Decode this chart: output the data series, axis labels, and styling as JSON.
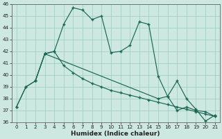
{
  "line1_x": [
    0,
    1,
    2,
    3,
    4,
    5,
    6,
    7,
    8,
    9,
    10,
    11,
    12,
    13,
    14,
    15,
    16,
    17,
    18,
    19,
    20,
    21
  ],
  "line1_y": [
    37.3,
    39.0,
    39.5,
    41.8,
    42.0,
    44.3,
    45.7,
    45.5,
    44.7,
    45.0,
    41.9,
    42.0,
    42.5,
    44.5,
    44.3,
    39.9,
    38.2,
    39.5,
    38.0,
    37.1,
    36.1,
    36.6
  ],
  "line2_x": [
    2,
    3,
    4,
    5,
    6,
    7,
    8,
    9,
    10,
    11,
    12,
    13,
    14,
    15,
    16,
    17,
    18,
    19,
    20,
    21
  ],
  "line2_y": [
    39.5,
    41.8,
    42.0,
    40.8,
    40.2,
    39.7,
    39.3,
    39.0,
    38.7,
    38.5,
    38.3,
    38.1,
    37.9,
    37.7,
    37.5,
    37.3,
    37.1,
    36.9,
    36.7,
    36.5
  ],
  "line3_x": [
    0,
    1,
    2,
    3,
    15,
    16,
    17,
    18,
    19,
    20,
    21
  ],
  "line3_y": [
    37.3,
    39.0,
    39.5,
    41.8,
    38.0,
    38.2,
    37.0,
    37.3,
    37.0,
    36.9,
    36.5
  ],
  "bg_color": "#cce8e0",
  "grid_color": "#99ccbb",
  "line_color": "#1a6655",
  "xlabel": "Humidex (Indice chaleur)",
  "ylim": [
    36,
    46
  ],
  "xlim": [
    -0.5,
    21.5
  ],
  "yticks": [
    36,
    37,
    38,
    39,
    40,
    41,
    42,
    43,
    44,
    45,
    46
  ],
  "xticks": [
    0,
    1,
    2,
    3,
    4,
    5,
    6,
    7,
    8,
    9,
    10,
    11,
    12,
    13,
    14,
    15,
    16,
    17,
    18,
    19,
    20,
    21
  ],
  "xlabel_fontsize": 6.5,
  "tick_fontsize": 5.2
}
